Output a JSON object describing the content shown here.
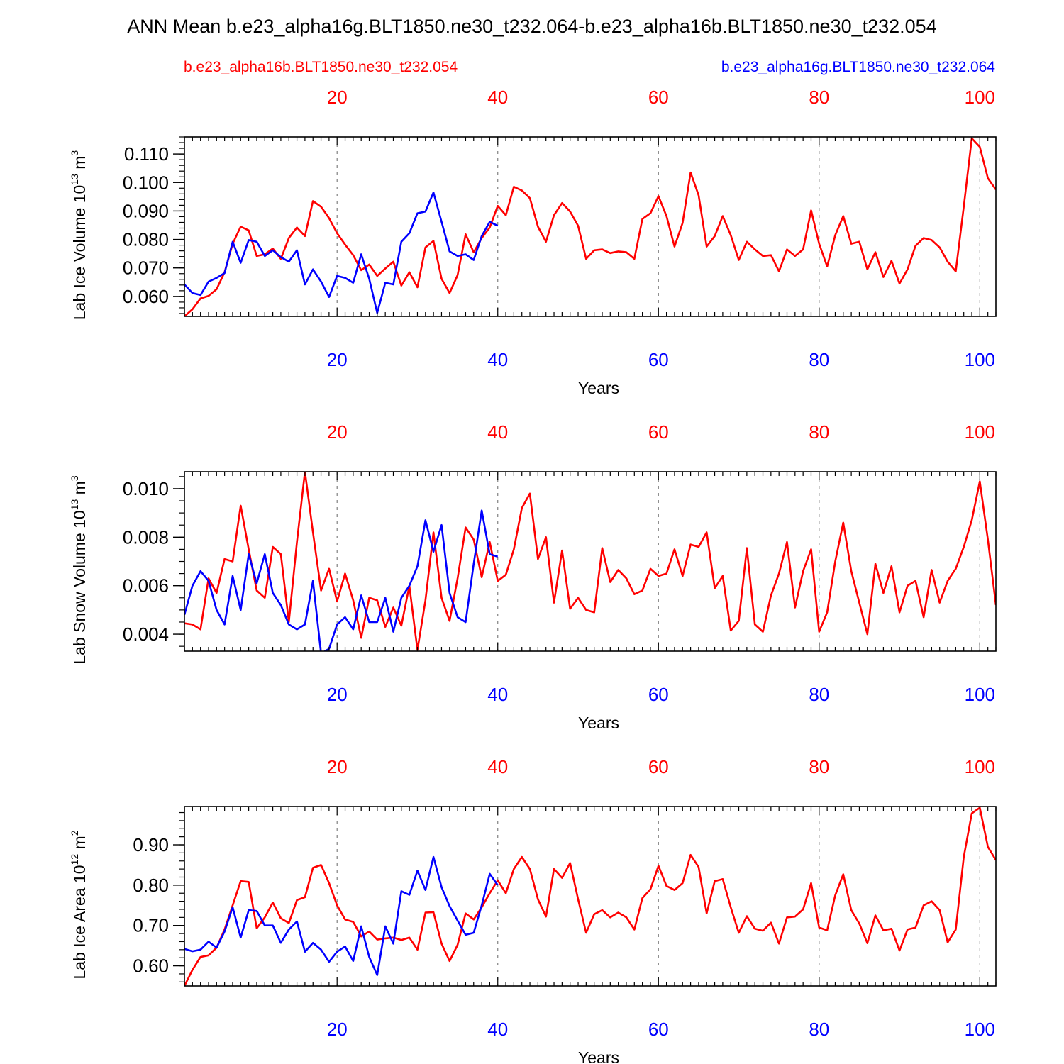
{
  "title": "ANN Mean b.e23_alpha16g.BLT1850.ne30_t232.064-b.e23_alpha16b.BLT1850.ne30_t232.054",
  "legend": {
    "red_label": "b.e23_alpha16b.BLT1850.ne30_t232.054",
    "blue_label": "b.e23_alpha16g.BLT1850.ne30_t232.064"
  },
  "colors": {
    "red": "#ff0000",
    "blue": "#0000ff",
    "axis": "#000000",
    "grid": "#808080"
  },
  "chart_data": [
    {
      "type": "line",
      "title": "",
      "ylabel_parts": [
        "Lab Ice Volume 10",
        "13",
        " m",
        "3"
      ],
      "ylabel": "Lab Ice Volume 10^13 m^3",
      "xlabel": "Years",
      "xlim": [
        1,
        102
      ],
      "ylim": [
        0.053,
        0.116
      ],
      "x_ticks": [
        20,
        40,
        60,
        80,
        100
      ],
      "x_tick_labels": [
        "20",
        "40",
        "60",
        "80",
        "100"
      ],
      "y_ticks": [
        0.06,
        0.07,
        0.08,
        0.09,
        0.1,
        0.11
      ],
      "y_tick_labels": [
        "0.060",
        "0.070",
        "0.080",
        "0.090",
        "0.100",
        "0.110"
      ],
      "y_minor_step": 0.002,
      "grid_x": true,
      "series": [
        {
          "name": "b.e23_alpha16b.BLT1850.ne30_t232.054",
          "color": "red",
          "x_start": 1,
          "values": [
            0.053,
            0.0555,
            0.0593,
            0.0602,
            0.0625,
            0.0685,
            0.0785,
            0.0845,
            0.0832,
            0.0742,
            0.0748,
            0.0768,
            0.0732,
            0.0805,
            0.0842,
            0.0812,
            0.0935,
            0.0915,
            0.0875,
            0.0822,
            0.0782,
            0.0745,
            0.0692,
            0.0712,
            0.0672,
            0.0698,
            0.0722,
            0.0638,
            0.0685,
            0.0632,
            0.0772,
            0.0795,
            0.0662,
            0.0612,
            0.0675,
            0.0818,
            0.0755,
            0.0805,
            0.0842,
            0.0918,
            0.0885,
            0.0985,
            0.0972,
            0.0945,
            0.0845,
            0.0792,
            0.0885,
            0.0928,
            0.0898,
            0.0848,
            0.0732,
            0.0762,
            0.0765,
            0.0752,
            0.0758,
            0.0755,
            0.0732,
            0.0872,
            0.0892,
            0.0952,
            0.0882,
            0.0775,
            0.0858,
            0.1035,
            0.0955,
            0.0775,
            0.0812,
            0.0882,
            0.0815,
            0.0728,
            0.0792,
            0.0765,
            0.0742,
            0.0745,
            0.0688,
            0.0765,
            0.0742,
            0.0765,
            0.0902,
            0.0785,
            0.0705,
            0.0815,
            0.0882,
            0.0785,
            0.0792,
            0.0695,
            0.0755,
            0.0668,
            0.0725,
            0.0645,
            0.0695,
            0.0778,
            0.0805,
            0.0798,
            0.0772,
            0.0722,
            0.0688,
            0.0915,
            0.1155,
            0.1125,
            0.1015,
            0.0975
          ]
        },
        {
          "name": "b.e23_alpha16g.BLT1850.ne30_t232.064",
          "color": "blue",
          "x_start": 1,
          "values": [
            0.0642,
            0.0612,
            0.0605,
            0.0652,
            0.0665,
            0.0682,
            0.0792,
            0.0718,
            0.0798,
            0.0792,
            0.0742,
            0.0762,
            0.0738,
            0.0722,
            0.0762,
            0.0642,
            0.0695,
            0.0652,
            0.0598,
            0.0672,
            0.0665,
            0.0648,
            0.0748,
            0.0662,
            0.0542,
            0.0648,
            0.0642,
            0.0792,
            0.0822,
            0.0892,
            0.0898,
            0.0965,
            0.0862,
            0.0758,
            0.0742,
            0.0748,
            0.0728,
            0.0812,
            0.0862,
            0.0848
          ]
        }
      ]
    },
    {
      "type": "line",
      "title": "",
      "ylabel_parts": [
        "Lab Snow Volume 10",
        "13",
        " m",
        "3"
      ],
      "ylabel": "Lab Snow Volume 10^13 m^3",
      "xlabel": "Years",
      "xlim": [
        1,
        102
      ],
      "ylim": [
        0.0033,
        0.0107
      ],
      "x_ticks": [
        20,
        40,
        60,
        80,
        100
      ],
      "x_tick_labels": [
        "20",
        "40",
        "60",
        "80",
        "100"
      ],
      "y_ticks": [
        0.004,
        0.006,
        0.008,
        0.01
      ],
      "y_tick_labels": [
        "0.004",
        "0.006",
        "0.008",
        "0.010"
      ],
      "y_minor_step": 0.0005,
      "grid_x": true,
      "series": [
        {
          "name": "b.e23_alpha16b.BLT1850.ne30_t232.054",
          "color": "red",
          "x_start": 1,
          "values": [
            0.00445,
            0.0044,
            0.0042,
            0.0063,
            0.0057,
            0.0071,
            0.007,
            0.0093,
            0.0075,
            0.0058,
            0.0055,
            0.0076,
            0.0073,
            0.0045,
            0.0078,
            0.0107,
            0.0082,
            0.0058,
            0.0067,
            0.00535,
            0.0065,
            0.0054,
            0.00385,
            0.0055,
            0.0054,
            0.0043,
            0.0051,
            0.00435,
            0.006,
            0.00335,
            0.0054,
            0.0082,
            0.0055,
            0.00455,
            0.0063,
            0.0084,
            0.0079,
            0.00635,
            0.0078,
            0.0062,
            0.00645,
            0.0075,
            0.0092,
            0.0098,
            0.0071,
            0.008,
            0.0053,
            0.00745,
            0.00505,
            0.0055,
            0.005,
            0.0049,
            0.00755,
            0.00615,
            0.00665,
            0.0063,
            0.00565,
            0.0058,
            0.0067,
            0.0064,
            0.0065,
            0.0075,
            0.0064,
            0.0077,
            0.0076,
            0.0082,
            0.0059,
            0.0064,
            0.00415,
            0.00455,
            0.00755,
            0.0044,
            0.0041,
            0.0056,
            0.0065,
            0.0078,
            0.0051,
            0.0066,
            0.0075,
            0.0041,
            0.0049,
            0.007,
            0.0086,
            0.0066,
            0.0053,
            0.004,
            0.0069,
            0.0057,
            0.0068,
            0.0049,
            0.006,
            0.0062,
            0.0047,
            0.00665,
            0.0053,
            0.0062,
            0.0067,
            0.0076,
            0.0087,
            0.0103,
            0.0079,
            0.0052
          ]
        },
        {
          "name": "b.e23_alpha16g.BLT1850.ne30_t232.064",
          "color": "blue",
          "x_start": 1,
          "values": [
            0.0048,
            0.006,
            0.0066,
            0.0062,
            0.005,
            0.0044,
            0.0064,
            0.005,
            0.0073,
            0.0061,
            0.0073,
            0.0057,
            0.0052,
            0.0044,
            0.0042,
            0.0044,
            0.0062,
            0.0032,
            0.0034,
            0.0044,
            0.0047,
            0.0042,
            0.0056,
            0.0045,
            0.0045,
            0.0055,
            0.0041,
            0.0055,
            0.006,
            0.0068,
            0.0087,
            0.0074,
            0.0085,
            0.0057,
            0.0047,
            0.0045,
            0.0069,
            0.0091,
            0.0073,
            0.0072
          ]
        }
      ]
    },
    {
      "type": "line",
      "title": "",
      "ylabel_parts": [
        "Lab Ice Area 10",
        "12",
        " m",
        "2"
      ],
      "ylabel": "Lab Ice Area 10^12 m^2",
      "xlabel": "Years",
      "xlim": [
        1,
        102
      ],
      "ylim": [
        0.55,
        0.995
      ],
      "x_ticks": [
        20,
        40,
        60,
        80,
        100
      ],
      "x_tick_labels": [
        "20",
        "40",
        "60",
        "80",
        "100"
      ],
      "y_ticks": [
        0.6,
        0.7,
        0.8,
        0.9
      ],
      "y_tick_labels": [
        "0.60",
        "0.70",
        "0.80",
        "0.90"
      ],
      "y_minor_step": 0.02,
      "grid_x": true,
      "series": [
        {
          "name": "b.e23_alpha16b.BLT1850.ne30_t232.054",
          "color": "red",
          "x_start": 1,
          "values": [
            0.55,
            0.59,
            0.622,
            0.626,
            0.645,
            0.69,
            0.75,
            0.81,
            0.808,
            0.693,
            0.72,
            0.757,
            0.718,
            0.706,
            0.763,
            0.77,
            0.843,
            0.85,
            0.805,
            0.75,
            0.715,
            0.709,
            0.673,
            0.685,
            0.665,
            0.668,
            0.67,
            0.664,
            0.67,
            0.64,
            0.732,
            0.733,
            0.655,
            0.612,
            0.652,
            0.73,
            0.715,
            0.745,
            0.78,
            0.812,
            0.78,
            0.84,
            0.87,
            0.84,
            0.765,
            0.722,
            0.84,
            0.818,
            0.855,
            0.765,
            0.682,
            0.728,
            0.738,
            0.72,
            0.732,
            0.72,
            0.69,
            0.768,
            0.79,
            0.848,
            0.798,
            0.788,
            0.805,
            0.875,
            0.845,
            0.73,
            0.81,
            0.815,
            0.745,
            0.682,
            0.723,
            0.692,
            0.687,
            0.707,
            0.655,
            0.72,
            0.722,
            0.74,
            0.805,
            0.695,
            0.688,
            0.775,
            0.827,
            0.738,
            0.705,
            0.656,
            0.725,
            0.688,
            0.692,
            0.638,
            0.69,
            0.695,
            0.75,
            0.76,
            0.738,
            0.658,
            0.69,
            0.87,
            0.978,
            0.992,
            0.895,
            0.862
          ]
        },
        {
          "name": "b.e23_alpha16g.BLT1850.ne30_t232.064",
          "color": "blue",
          "x_start": 1,
          "values": [
            0.642,
            0.636,
            0.64,
            0.66,
            0.645,
            0.685,
            0.745,
            0.67,
            0.738,
            0.736,
            0.7,
            0.7,
            0.657,
            0.69,
            0.71,
            0.635,
            0.657,
            0.64,
            0.61,
            0.635,
            0.648,
            0.612,
            0.698,
            0.622,
            0.577,
            0.698,
            0.655,
            0.785,
            0.776,
            0.836,
            0.788,
            0.87,
            0.795,
            0.748,
            0.712,
            0.677,
            0.682,
            0.75,
            0.828,
            0.8
          ]
        }
      ]
    }
  ]
}
